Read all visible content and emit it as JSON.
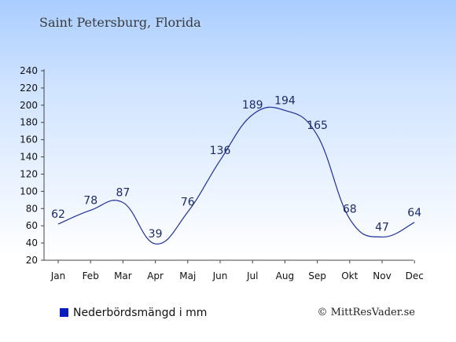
{
  "chart_data": {
    "type": "line",
    "title": "Saint Petersburg, Florida",
    "categories": [
      "Jan",
      "Feb",
      "Mar",
      "Apr",
      "Maj",
      "Jun",
      "Jul",
      "Aug",
      "Sep",
      "Okt",
      "Nov",
      "Dec"
    ],
    "values": [
      62,
      78,
      87,
      39,
      76,
      136,
      189,
      194,
      165,
      68,
      47,
      64
    ],
    "series": [
      {
        "name": "Nederbördsmängd i mm",
        "values": [
          62,
          78,
          87,
          39,
          76,
          136,
          189,
          194,
          165,
          68,
          47,
          64
        ]
      }
    ],
    "yticks": [
      20,
      40,
      60,
      80,
      100,
      120,
      140,
      160,
      180,
      200,
      220,
      240
    ],
    "ylim": [
      20,
      240
    ],
    "xlabel": "",
    "ylabel": "",
    "grid": false,
    "legend_position": "bottom-left",
    "line_color": "#1f2f9a",
    "legend_color": "#0a1cc0"
  },
  "credit": "© MittResVader.se"
}
